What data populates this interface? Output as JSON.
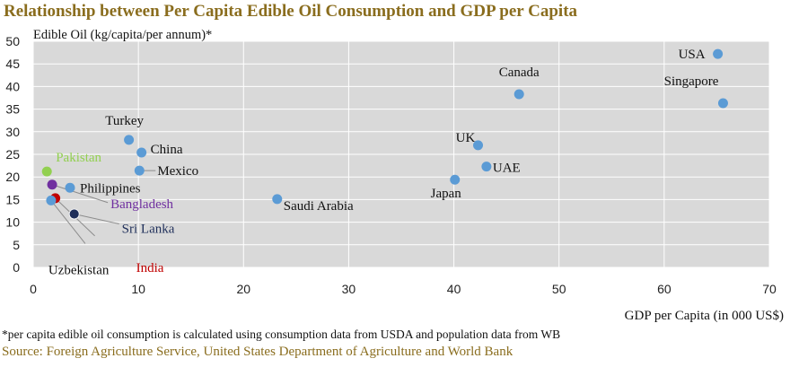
{
  "page": {
    "title": "Relationship between Per Capita Edible Oil Consumption and GDP per Capita",
    "footnote": "*per capita edible oil consumption is calculated using consumption data from USDA and population data from WB",
    "source": "Source: Foreign Agriculture Service, United States Department of Agriculture and World Bank"
  },
  "chart_data": {
    "type": "scatter",
    "ylabel": "Edible Oil (kg/capita/per annum)*",
    "xlabel": "GDP per Capita (in 000 US$)",
    "xlim": [
      0,
      70
    ],
    "ylim": [
      0,
      50
    ],
    "xticks": [
      "0",
      "10",
      "20",
      "30",
      "40",
      "50",
      "60",
      "70"
    ],
    "yticks": [
      "0",
      "5",
      "10",
      "15",
      "20",
      "25",
      "30",
      "35",
      "40",
      "45",
      "50"
    ],
    "grid": true,
    "colors": {
      "plot_bg": "#d9d9d9",
      "grid": "#ffffff",
      "default_point": "#5b9bd5",
      "title": "#8a6d1e"
    },
    "points": [
      {
        "label": "USA",
        "x": 65.1,
        "y": 47.2,
        "color": "#5b9bd5",
        "label_color": "#111111"
      },
      {
        "label": "Canada",
        "x": 46.2,
        "y": 38.3,
        "color": "#5b9bd5",
        "label_color": "#111111"
      },
      {
        "label": "Singapore",
        "x": 65.6,
        "y": 36.3,
        "color": "#5b9bd5",
        "label_color": "#111111"
      },
      {
        "label": "Turkey",
        "x": 9.1,
        "y": 28.2,
        "color": "#5b9bd5",
        "label_color": "#111111"
      },
      {
        "label": "UK",
        "x": 42.3,
        "y": 27.0,
        "color": "#5b9bd5",
        "label_color": "#111111"
      },
      {
        "label": "China",
        "x": 10.3,
        "y": 25.4,
        "color": "#5b9bd5",
        "label_color": "#111111"
      },
      {
        "label": "UAE",
        "x": 43.1,
        "y": 22.3,
        "color": "#5b9bd5",
        "label_color": "#111111"
      },
      {
        "label": "Mexico",
        "x": 10.1,
        "y": 21.4,
        "color": "#5b9bd5",
        "label_color": "#111111"
      },
      {
        "label": "Pakistan",
        "x": 1.3,
        "y": 21.2,
        "color": "#92d050",
        "label_color": "#92d050"
      },
      {
        "label": "Japan",
        "x": 40.1,
        "y": 19.4,
        "color": "#5b9bd5",
        "label_color": "#111111"
      },
      {
        "label": "Philippines",
        "x": 3.5,
        "y": 17.6,
        "color": "#5b9bd5",
        "label_color": "#111111"
      },
      {
        "label": "Bangladesh",
        "x": 1.8,
        "y": 18.3,
        "color": "#7030a0",
        "label_color": "#7030a0"
      },
      {
        "label": "Saudi Arabia",
        "x": 23.2,
        "y": 15.1,
        "color": "#5b9bd5",
        "label_color": "#111111"
      },
      {
        "label": "India",
        "x": 2.1,
        "y": 15.3,
        "color": "#c00000",
        "label_color": "#c00000"
      },
      {
        "label": "Uzbekistan",
        "x": 1.7,
        "y": 14.8,
        "color": "#5b9bd5",
        "label_color": "#111111"
      },
      {
        "label": "Sri Lanka",
        "x": 3.9,
        "y": 11.8,
        "color": "#1f2f5a",
        "label_color": "#1f2f5a"
      }
    ]
  }
}
